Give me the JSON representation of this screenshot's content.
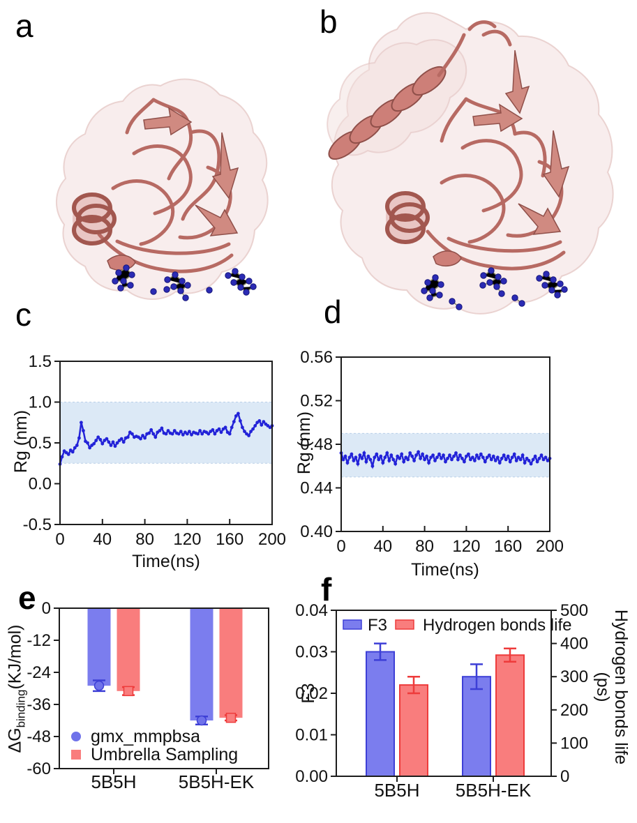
{
  "figure": {
    "panels": {
      "a": {
        "label": "a"
      },
      "b": {
        "label": "b"
      },
      "c": {
        "label": "c"
      },
      "d": {
        "label": "d"
      },
      "e": {
        "label": "e"
      },
      "f": {
        "label": "f"
      }
    }
  },
  "colors": {
    "line_blue": "#2323d8",
    "band_blue": "#dce9f6",
    "band_edge": "#b9cfe8",
    "bar_blue_fill": "#7b7dee",
    "bar_blue_stroke": "#3d3fd6",
    "bar_red_fill": "#f97d7d",
    "bar_red_stroke": "#ee3b3b",
    "marker_blue": "#6f72ea",
    "axis": "#1c1c1c",
    "text": "#111111",
    "ribbon": "#c9766e",
    "ribbon_dark": "#8f4f49",
    "surface_pink": "#f2dfde",
    "residue_blue": "#2b2bb4"
  },
  "chart_data": [
    {
      "panel": "c",
      "type": "line",
      "xlabel": "Time(ns)",
      "ylabel": "Rg (nm)",
      "xlim": [
        0,
        200
      ],
      "ylim": [
        -0.5,
        1.5
      ],
      "x_ticks": [
        0,
        40,
        80,
        120,
        160,
        200
      ],
      "y_ticks": [
        "1.5",
        "1.0",
        "0.5",
        "0.0",
        "-0.5"
      ],
      "band": [
        0.25,
        1.0
      ],
      "x_step": 2,
      "values": [
        0.24,
        0.33,
        0.4,
        0.38,
        0.36,
        0.41,
        0.39,
        0.44,
        0.47,
        0.56,
        0.75,
        0.65,
        0.52,
        0.5,
        0.44,
        0.47,
        0.49,
        0.53,
        0.57,
        0.54,
        0.49,
        0.53,
        0.55,
        0.51,
        0.47,
        0.51,
        0.46,
        0.5,
        0.53,
        0.55,
        0.51,
        0.56,
        0.57,
        0.63,
        0.61,
        0.57,
        0.58,
        0.57,
        0.55,
        0.59,
        0.56,
        0.61,
        0.62,
        0.66,
        0.61,
        0.57,
        0.63,
        0.65,
        0.68,
        0.62,
        0.61,
        0.65,
        0.62,
        0.61,
        0.65,
        0.62,
        0.61,
        0.64,
        0.6,
        0.63,
        0.61,
        0.64,
        0.6,
        0.63,
        0.62,
        0.61,
        0.65,
        0.61,
        0.64,
        0.63,
        0.61,
        0.64,
        0.66,
        0.61,
        0.65,
        0.67,
        0.63,
        0.67,
        0.69,
        0.63,
        0.61,
        0.69,
        0.76,
        0.83,
        0.86,
        0.77,
        0.69,
        0.64,
        0.61,
        0.59,
        0.64,
        0.67,
        0.71,
        0.75,
        0.77,
        0.72,
        0.76,
        0.73,
        0.71,
        0.69,
        0.71
      ]
    },
    {
      "panel": "d",
      "type": "line",
      "xlabel": "Time(ns)",
      "ylabel": "Rg (nm)",
      "xlim": [
        0,
        200
      ],
      "ylim": [
        0.4,
        0.56
      ],
      "x_ticks": [
        0,
        40,
        80,
        120,
        160,
        200
      ],
      "y_ticks": [
        "0.56",
        "0.52",
        "0.48",
        "0.44",
        "0.40"
      ],
      "band": [
        0.45,
        0.49
      ],
      "x_step": 2,
      "values": [
        0.472,
        0.466,
        0.469,
        0.463,
        0.468,
        0.471,
        0.465,
        0.468,
        0.462,
        0.47,
        0.467,
        0.472,
        0.464,
        0.469,
        0.466,
        0.46,
        0.468,
        0.471,
        0.466,
        0.469,
        0.463,
        0.468,
        0.472,
        0.465,
        0.47,
        0.466,
        0.462,
        0.469,
        0.467,
        0.471,
        0.464,
        0.468,
        0.466,
        0.472,
        0.469,
        0.465,
        0.47,
        0.473,
        0.467,
        0.471,
        0.466,
        0.469,
        0.463,
        0.468,
        0.47,
        0.465,
        0.468,
        0.471,
        0.467,
        0.47,
        0.464,
        0.467,
        0.47,
        0.466,
        0.469,
        0.472,
        0.466,
        0.47,
        0.467,
        0.464,
        0.469,
        0.471,
        0.466,
        0.468,
        0.465,
        0.47,
        0.467,
        0.471,
        0.468,
        0.464,
        0.468,
        0.47,
        0.466,
        0.469,
        0.465,
        0.468,
        0.463,
        0.467,
        0.47,
        0.466,
        0.469,
        0.464,
        0.468,
        0.471,
        0.465,
        0.468,
        0.466,
        0.47,
        0.463,
        0.467,
        0.465,
        0.462,
        0.466,
        0.469,
        0.464,
        0.467,
        0.47,
        0.466,
        0.468,
        0.465,
        0.467
      ]
    },
    {
      "panel": "e",
      "type": "bar",
      "orientation": "down",
      "categories": [
        "5B5H",
        "5B5H-EK"
      ],
      "ylabel_parts": {
        "main": "ΔG",
        "sub": "binding",
        "unit": "(KJ/mol)"
      },
      "ylim": [
        -60,
        0
      ],
      "y_ticks": [
        "0",
        "-12",
        "-24",
        "-36",
        "-48",
        "-60"
      ],
      "series": [
        {
          "name": "gmx_mmpbsa",
          "marker": "circle",
          "color": "blue",
          "values": [
            -29,
            -42
          ],
          "errors": [
            2,
            1.5
          ]
        },
        {
          "name": "Umbrella Sampling",
          "marker": "square",
          "color": "red",
          "values": [
            -31,
            -41
          ],
          "errors": [
            1.5,
            1
          ]
        }
      ]
    },
    {
      "panel": "f",
      "type": "bar",
      "orientation": "up",
      "categories": [
        "5B5H",
        "5B5H-EK"
      ],
      "ylabel_left": "F3",
      "ylabel_right_line1": "Hydrogen bonds life",
      "ylabel_right_line2": "(ps)",
      "ylim_left": [
        0,
        0.04
      ],
      "y_ticks_left": [
        "0.04",
        "0.03",
        "0.02",
        "0.01",
        "0.00"
      ],
      "ylim_right": [
        0,
        500
      ],
      "y_ticks_right": [
        "500",
        "400",
        "300",
        "200",
        "100",
        "0"
      ],
      "series": [
        {
          "name": "F3",
          "axis": "left",
          "color": "blue",
          "values": [
            0.03,
            0.024
          ],
          "errors": [
            0.002,
            0.003
          ]
        },
        {
          "name": "Hydrogen bonds life",
          "axis": "right",
          "color": "red",
          "values": [
            275,
            365
          ],
          "errors": [
            25,
            20
          ]
        }
      ]
    }
  ]
}
